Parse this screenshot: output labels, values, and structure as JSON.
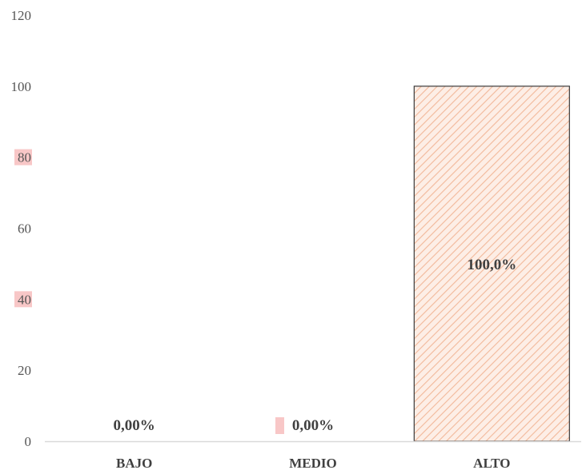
{
  "chart_data": {
    "type": "bar",
    "categories": [
      "BAJO",
      "MEDIO",
      "ALTO"
    ],
    "values": [
      0,
      0,
      100
    ],
    "data_labels": [
      "0,00%",
      "0,00%",
      "100,0%"
    ],
    "ylim": [
      0,
      120
    ],
    "yticks": [
      0,
      20,
      40,
      60,
      80,
      100,
      120
    ],
    "ytick_labels": [
      "0",
      "20",
      "40",
      "60",
      "80",
      "100",
      "120"
    ],
    "grid": false,
    "legend": "none",
    "bar_fill": "#fdeee6",
    "bar_hatch": "#f2b89a",
    "bar_edge": "#3a3a3a",
    "axis_color": "#d9d9d9"
  }
}
